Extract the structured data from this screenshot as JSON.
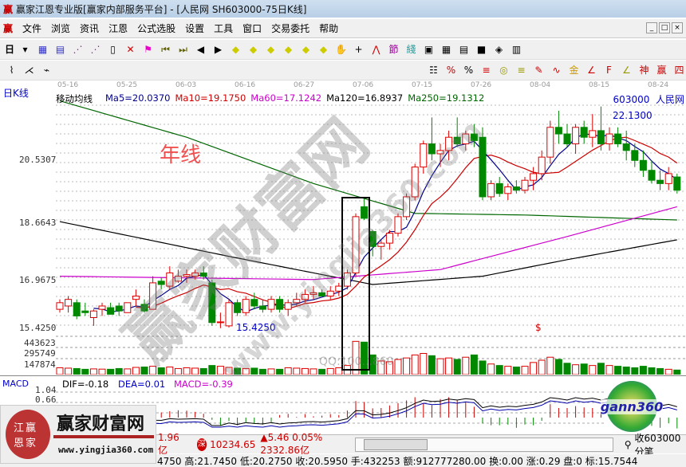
{
  "window": {
    "title": "赢家江恩专业版[赢家内部服务平台] - [人民网  SH603000-75日K线]",
    "logo": "赢"
  },
  "menu": [
    "文件",
    "浏览",
    "资讯",
    "江恩",
    "公式选股",
    "设置",
    "工具",
    "窗口",
    "交易委托",
    "帮助"
  ],
  "toolbar": {
    "period": "日"
  },
  "chart": {
    "period_label": "日K线",
    "dates": [
      "05-16",
      "05-25",
      "06-03",
      "06-16",
      "06-27",
      "07-06",
      "07-15",
      "07-26",
      "08-04",
      "08-15",
      "08-24"
    ],
    "ma_title": "移动均线",
    "ma": [
      {
        "label": "Ma5=20.0370",
        "color": "#00008b"
      },
      {
        "label": "Ma10=19.1750",
        "color": "#cc0000"
      },
      {
        "label": "Ma60=17.1242",
        "color": "#cc00cc"
      },
      {
        "label": "Ma120=16.8937",
        "color": "#000000"
      },
      {
        "label": "Ma250=19.1312",
        "color": "#006600"
      }
    ],
    "stock": "603000  人民网",
    "y_ticks": [
      "20.5307",
      "18.6643",
      "16.9675",
      "15.4250"
    ],
    "vol_ticks": [
      "443623",
      "295749",
      "147874"
    ],
    "annot_year": "年线",
    "high_label": "22.1300",
    "low_label": "15.4250",
    "marker": "$",
    "watermark": "赢家财富网",
    "watermark_url": "www.yingjia360.com",
    "watermark_qq": "QQ:100...860"
  },
  "chart_data": {
    "type": "candlestick",
    "ohlc": [
      [
        16.0,
        16.3,
        15.9,
        16.2
      ],
      [
        16.1,
        16.4,
        15.9,
        16.3
      ],
      [
        16.2,
        16.3,
        15.7,
        15.8
      ],
      [
        15.95,
        16.2,
        15.8,
        15.9
      ],
      [
        15.75,
        16.0,
        15.5,
        15.95
      ],
      [
        16.0,
        16.2,
        15.8,
        16.1
      ],
      [
        16.05,
        16.2,
        15.9,
        15.85
      ],
      [
        16.1,
        16.2,
        15.8,
        15.95
      ],
      [
        15.9,
        16.2,
        15.9,
        16.2
      ],
      [
        16.3,
        16.6,
        16.1,
        16.4
      ],
      [
        16.15,
        16.3,
        15.9,
        15.95
      ],
      [
        16.0,
        17.0,
        16.0,
        16.8
      ],
      [
        16.85,
        16.95,
        16.6,
        16.75
      ],
      [
        16.7,
        17.3,
        16.6,
        17.1
      ],
      [
        16.85,
        17.2,
        16.8,
        17.0
      ],
      [
        17.0,
        17.2,
        16.8,
        17.05
      ],
      [
        17.0,
        17.2,
        16.9,
        17.1
      ],
      [
        17.1,
        17.3,
        16.9,
        17.0
      ],
      [
        16.8,
        16.9,
        15.5,
        15.6
      ],
      [
        15.6,
        15.9,
        15.43,
        15.62
      ],
      [
        15.5,
        16.3,
        15.45,
        16.2
      ],
      [
        16.2,
        16.3,
        15.8,
        15.9
      ],
      [
        15.9,
        16.4,
        15.8,
        16.3
      ],
      [
        16.3,
        16.5,
        16.0,
        16.1
      ],
      [
        16.1,
        16.3,
        15.9,
        16.0
      ],
      [
        16.0,
        16.4,
        15.9,
        16.3
      ],
      [
        16.3,
        16.4,
        15.9,
        16.0
      ],
      [
        16.0,
        16.3,
        15.8,
        16.2
      ],
      [
        16.2,
        16.5,
        16.1,
        16.3
      ],
      [
        16.3,
        16.6,
        16.2,
        16.45
      ],
      [
        16.45,
        16.7,
        16.3,
        16.5
      ],
      [
        16.5,
        16.6,
        16.35,
        16.4
      ],
      [
        16.4,
        16.7,
        16.3,
        16.55
      ],
      [
        16.55,
        16.8,
        16.4,
        16.7
      ],
      [
        16.7,
        17.2,
        16.6,
        17.1
      ],
      [
        17.1,
        18.9,
        17.0,
        18.8
      ],
      [
        19.1,
        19.4,
        18.7,
        18.75
      ],
      [
        18.35,
        18.4,
        17.6,
        17.9
      ],
      [
        17.9,
        18.1,
        17.5,
        18.0
      ],
      [
        18.0,
        18.4,
        17.8,
        18.3
      ],
      [
        18.3,
        18.9,
        18.2,
        18.8
      ],
      [
        18.8,
        19.5,
        18.7,
        19.4
      ],
      [
        19.4,
        20.4,
        19.3,
        20.3
      ],
      [
        20.3,
        21.1,
        20.1,
        21.0
      ],
      [
        21.0,
        21.8,
        20.5,
        20.7
      ],
      [
        20.7,
        21.0,
        20.3,
        20.8
      ],
      [
        20.8,
        21.4,
        20.5,
        21.2
      ],
      [
        21.2,
        21.8,
        20.9,
        21.0
      ],
      [
        21.0,
        21.4,
        20.8,
        21.3
      ],
      [
        21.3,
        21.6,
        20.9,
        21.1
      ],
      [
        21.2,
        21.5,
        19.3,
        19.4
      ],
      [
        19.4,
        19.9,
        19.3,
        19.8
      ],
      [
        19.8,
        20.0,
        19.4,
        19.5
      ],
      [
        19.5,
        19.8,
        19.3,
        19.7
      ],
      [
        19.7,
        19.9,
        19.5,
        19.6
      ],
      [
        19.6,
        20.0,
        19.5,
        19.9
      ],
      [
        19.9,
        20.3,
        19.6,
        20.1
      ],
      [
        20.1,
        20.8,
        19.9,
        20.6
      ],
      [
        20.6,
        21.7,
        20.4,
        21.5
      ],
      [
        21.5,
        22.0,
        21.0,
        21.3
      ],
      [
        21.3,
        21.6,
        20.9,
        21.0
      ],
      [
        21.0,
        21.6,
        20.7,
        21.5
      ],
      [
        21.5,
        21.7,
        21.0,
        21.2
      ],
      [
        21.2,
        21.9,
        20.9,
        21.4
      ],
      [
        21.4,
        22.13,
        20.8,
        21.0
      ],
      [
        21.0,
        21.5,
        20.8,
        21.3
      ],
      [
        21.3,
        21.5,
        20.9,
        21.0
      ],
      [
        21.0,
        21.4,
        20.5,
        20.8
      ],
      [
        20.8,
        21.0,
        20.3,
        20.5
      ],
      [
        20.5,
        20.8,
        20.0,
        20.2
      ],
      [
        20.2,
        20.5,
        19.8,
        19.9
      ],
      [
        19.9,
        20.2,
        19.6,
        19.8
      ],
      [
        19.8,
        20.3,
        19.6,
        20.1
      ],
      [
        20.0,
        20.1,
        19.5,
        19.6
      ]
    ],
    "volume": [
      90000,
      85000,
      80000,
      70000,
      75000,
      72000,
      70000,
      80000,
      75000,
      95000,
      100000,
      110000,
      90000,
      100000,
      80000,
      90000,
      85000,
      80000,
      120000,
      110000,
      95000,
      85000,
      80000,
      85000,
      70000,
      75000,
      70000,
      90000,
      85000,
      80000,
      75000,
      70000,
      80000,
      90000,
      120000,
      440000,
      430000,
      260000,
      180000,
      170000,
      200000,
      220000,
      260000,
      280000,
      250000,
      210000,
      220000,
      200000,
      230000,
      260000,
      180000,
      140000,
      120000,
      110000,
      100000,
      110000,
      160000,
      190000,
      230000,
      200000,
      150000,
      130000,
      140000,
      120000,
      150000,
      120000,
      110000,
      100000,
      90000,
      110000,
      90000,
      80000,
      70000,
      60000
    ],
    "ma60": [
      [
        0,
        17.0
      ],
      [
        30,
        16.9
      ],
      [
        45,
        17.2
      ],
      [
        60,
        18.2
      ],
      [
        73,
        19.1
      ]
    ],
    "ma120": [
      [
        0,
        18.65
      ],
      [
        20,
        17.6
      ],
      [
        37,
        16.75
      ],
      [
        50,
        17.0
      ],
      [
        60,
        17.5
      ],
      [
        73,
        18.1
      ]
    ],
    "ma250": [
      [
        0,
        22.3
      ],
      [
        15,
        21.2
      ],
      [
        30,
        19.8
      ],
      [
        42,
        18.9
      ],
      [
        55,
        18.85
      ],
      [
        73,
        18.7
      ]
    ],
    "y_range": [
      15.0,
      23.0
    ]
  },
  "macd": {
    "title": "MACD",
    "dif": "DIF=-0.18",
    "dea": "DEA=0.01",
    "macd": "MACD=-0.39",
    "ticks": [
      "1.04",
      "0.66"
    ]
  },
  "promo": {
    "name": "赢家财富网",
    "seal": "江赢恩家",
    "url": "www.yingjia360.com",
    "gann": "gann360"
  },
  "status": {
    "left": "1.96亿",
    "index": "10234.65",
    "change": "▲5.46 0.05% 2332.86亿",
    "right": "收603000分笔"
  },
  "bottom": "4750 高:21.7450 低:20.2750 收:20.5950 手:432253 额:912777280.00 换:0.00 涨:0.29 盘:0 标:15.7544"
}
